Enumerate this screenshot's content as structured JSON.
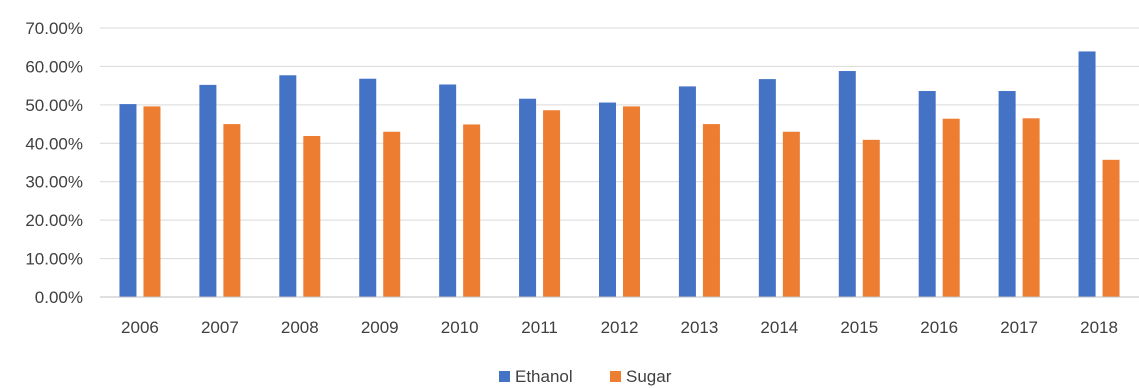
{
  "chart_data": {
    "type": "bar",
    "title": "",
    "xlabel": "",
    "ylabel": "",
    "categories": [
      "2006",
      "2007",
      "2008",
      "2009",
      "2010",
      "2011",
      "2012",
      "2013",
      "2014",
      "2015",
      "2016",
      "2017",
      "2018"
    ],
    "series": [
      {
        "name": "Ethanol",
        "color": "#4472C4",
        "values": [
          50.2,
          55.2,
          57.7,
          56.8,
          55.3,
          51.6,
          50.6,
          54.8,
          56.7,
          58.8,
          53.6,
          53.6,
          63.9
        ]
      },
      {
        "name": "Sugar",
        "color": "#ED7D31",
        "values": [
          49.6,
          45.0,
          41.9,
          43.0,
          44.9,
          48.6,
          49.6,
          45.0,
          43.0,
          40.9,
          46.4,
          46.5,
          35.7
        ]
      }
    ],
    "ylim": [
      0,
      70
    ],
    "yticks": [
      0,
      10,
      20,
      30,
      40,
      50,
      60,
      70
    ],
    "ytick_labels": [
      "0.00%",
      "10.00%",
      "20.00%",
      "30.00%",
      "40.00%",
      "50.00%",
      "60.00%",
      "70.00%"
    ],
    "grid": true,
    "legend_position": "bottom-center"
  }
}
